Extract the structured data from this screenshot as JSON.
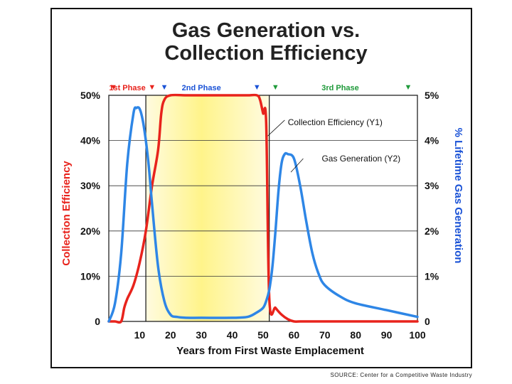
{
  "chart_data": {
    "type": "line",
    "title": "Gas Generation vs. Collection Efficiency",
    "title_lines": [
      "Gas Generation vs.",
      "Collection Efficiency"
    ],
    "xlabel": "Years from First Waste Emplacement",
    "ylabel_left": "Collection Efficiency",
    "ylabel_right": "% Lifetime Gas Generation",
    "xlim": [
      0,
      100
    ],
    "ylim_left": [
      0,
      50
    ],
    "ylim_right": [
      0,
      5
    ],
    "grid": true,
    "x_ticks": [
      "10",
      "20",
      "30",
      "40",
      "50",
      "60",
      "70",
      "80",
      "90",
      "100"
    ],
    "y_ticks_left": [
      "0",
      "10%",
      "20%",
      "30%",
      "40%",
      "50%"
    ],
    "y_ticks_right": [
      "0",
      "1%",
      "2%",
      "3%",
      "4%",
      "5%"
    ],
    "phases": [
      {
        "label": "1st Phase",
        "color": "#e8231c"
      },
      {
        "label": "2nd Phase",
        "color": "#1a52d6"
      },
      {
        "label": "3rd Phase",
        "color": "#1f9a3a"
      }
    ],
    "phase_boundaries": [
      12,
      52
    ],
    "series": [
      {
        "name": "Collection Efficiency (Y1)",
        "axis": "left",
        "color": "#e8231c",
        "x": [
          0,
          2,
          4,
          5,
          6,
          8,
          10,
          12,
          14,
          16,
          17,
          18,
          20,
          25,
          30,
          40,
          45,
          48,
          49,
          50,
          51,
          52,
          54,
          56,
          58,
          60,
          62,
          65,
          70,
          80,
          90,
          100
        ],
        "y": [
          0,
          0,
          0,
          3,
          5,
          8,
          13,
          20,
          30,
          38,
          46,
          49,
          50,
          50,
          50,
          50,
          50,
          50,
          49,
          46,
          44,
          5,
          3,
          1.5,
          0.5,
          0,
          0,
          0,
          0,
          0,
          0,
          0
        ]
      },
      {
        "name": "Gas Generation (Y2)",
        "axis": "right",
        "color": "#2e86e6",
        "x": [
          0,
          2,
          4,
          6,
          8,
          9,
          10,
          11,
          12,
          13,
          14,
          16,
          18,
          20,
          22,
          25,
          30,
          40,
          45,
          48,
          50,
          51,
          52,
          53,
          54,
          55,
          56,
          57,
          58,
          60,
          62,
          64,
          66,
          68,
          70,
          75,
          80,
          90,
          100
        ],
        "y": [
          0.0,
          0.4,
          1.5,
          3.5,
          4.6,
          4.72,
          4.7,
          4.45,
          4.0,
          3.4,
          2.6,
          1.2,
          0.45,
          0.15,
          0.1,
          0.08,
          0.08,
          0.08,
          0.1,
          0.2,
          0.3,
          0.45,
          0.7,
          1.2,
          2.0,
          2.9,
          3.5,
          3.7,
          3.7,
          3.6,
          3.0,
          2.2,
          1.5,
          1.05,
          0.8,
          0.55,
          0.4,
          0.25,
          0.1
        ]
      }
    ],
    "annotations": [
      {
        "text": "Collection Efficiency (Y1)",
        "x": 50.5,
        "y": 44
      },
      {
        "text": "Gas Generation (Y2)",
        "x": 63,
        "y": 30
      }
    ]
  },
  "source": "SOURCE: Center for a Competitive Waste Industry",
  "colors": {
    "collection": "#e8231c",
    "gas": "#2e86e6",
    "phase2_fill_center": "#fff48a",
    "phase2_fill_edge": "#fffbe0"
  }
}
